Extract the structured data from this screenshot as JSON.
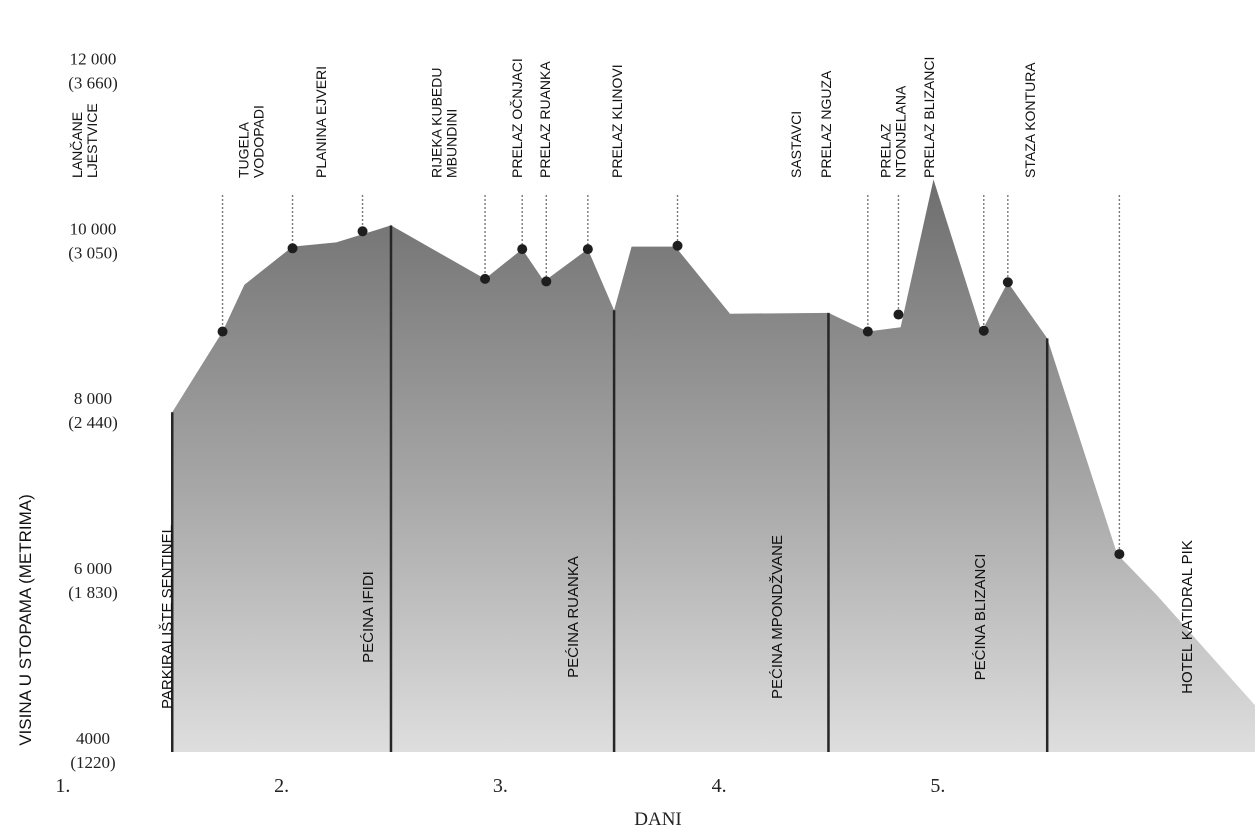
{
  "chart_data": {
    "type": "area",
    "title": "",
    "xlabel": "DANI",
    "ylabel": "VISINA U STOPAMA (METRIMA)",
    "ylim": [
      4000,
      12500
    ],
    "xlim": [
      0.9,
      6.45
    ],
    "grid": false,
    "y_ticks": [
      {
        "value": 12000,
        "label": "12 000",
        "sublabel": "(3 660)"
      },
      {
        "value": 10000,
        "label": "10 000",
        "sublabel": "(3 050)"
      },
      {
        "value": 8000,
        "label": "8 000",
        "sublabel": "(2 440)"
      },
      {
        "value": 6000,
        "label": "6 000",
        "sublabel": "(1 830)"
      },
      {
        "value": 4000,
        "label": "4000",
        "sublabel": "(1220)"
      }
    ],
    "x_ticks": [
      {
        "value": 1,
        "label": "1."
      },
      {
        "value": 2,
        "label": "2."
      },
      {
        "value": 3,
        "label": "3."
      },
      {
        "value": 4,
        "label": "4."
      },
      {
        "value": 5,
        "label": "5."
      }
    ],
    "profile": {
      "x": [
        1.5,
        1.73,
        1.83,
        2.05,
        2.25,
        2.5,
        2.93,
        3.1,
        3.2,
        3.4,
        3.52,
        3.6,
        3.8,
        4.05,
        4.5,
        4.68,
        4.83,
        4.98,
        5.2,
        5.32,
        5.5,
        5.82,
        6.0,
        6.45
      ],
      "y": [
        8000,
        8950,
        9500,
        9950,
        10000,
        10200,
        9570,
        9920,
        9540,
        9920,
        9200,
        9950,
        9950,
        9160,
        9170,
        8950,
        9000,
        10740,
        8950,
        9530,
        8870,
        6330,
        5850,
        4550
      ]
    },
    "camps": [
      {
        "x": 1.5,
        "y": 8000,
        "name": "PARKIRALIŠTE SENTINEL"
      },
      {
        "x": 2.5,
        "y": 10200,
        "name": "PEĆINA IFIDI"
      },
      {
        "x": 3.52,
        "y": 9200,
        "name": "PEĆINA RUANKA"
      },
      {
        "x": 4.5,
        "y": 9170,
        "name": "PEĆINA MPONDŽVANE"
      },
      {
        "x": 5.5,
        "y": 8870,
        "name": "PEĆINA BLIZANCI"
      }
    ],
    "end_label": "HOTEL KATIDRAL PIK",
    "landmarks_no_marker": [
      {
        "x": 1.1,
        "lines": [
          "LANČANE",
          "LJESTVICE"
        ]
      }
    ],
    "landmarks": [
      {
        "x": 1.73,
        "y": 8950,
        "lines": [
          "TUGELA",
          "VODOPADI"
        ]
      },
      {
        "x": 2.05,
        "y": 9930,
        "lines": [
          "PLANINA EJVERI"
        ]
      },
      {
        "x": 2.37,
        "y": 10130,
        "lines": [
          "RIJEKA KUBEDU",
          "MBUNDINI"
        ]
      },
      {
        "x": 2.93,
        "y": 9570,
        "lines": [
          "PRELAZ OČNJACI"
        ]
      },
      {
        "x": 3.1,
        "y": 9920,
        "lines": [
          "PRELAZ RUANKA"
        ]
      },
      {
        "x": 3.21,
        "y": 9540,
        "lines": [
          ""
        ]
      },
      {
        "x": 3.4,
        "y": 9920,
        "lines": [
          "PRELAZ KLINOVI"
        ]
      },
      {
        "x": 3.81,
        "y": 9960,
        "lines": [
          "SASTAVCI"
        ]
      },
      {
        "x": 4.68,
        "y": 8950,
        "lines": [
          "PRELAZ NGUZA"
        ]
      },
      {
        "x": 4.82,
        "y": 9150,
        "lines": [
          "PRELAZ",
          "NTONJELANA"
        ]
      },
      {
        "x": 5.21,
        "y": 8960,
        "lines": [
          "PRELAZ BLIZANCI"
        ]
      },
      {
        "x": 5.32,
        "y": 9530,
        "lines": [
          "STAZA KONTURA"
        ]
      },
      {
        "x": 5.83,
        "y": 6330,
        "lines": [
          ""
        ]
      }
    ]
  }
}
